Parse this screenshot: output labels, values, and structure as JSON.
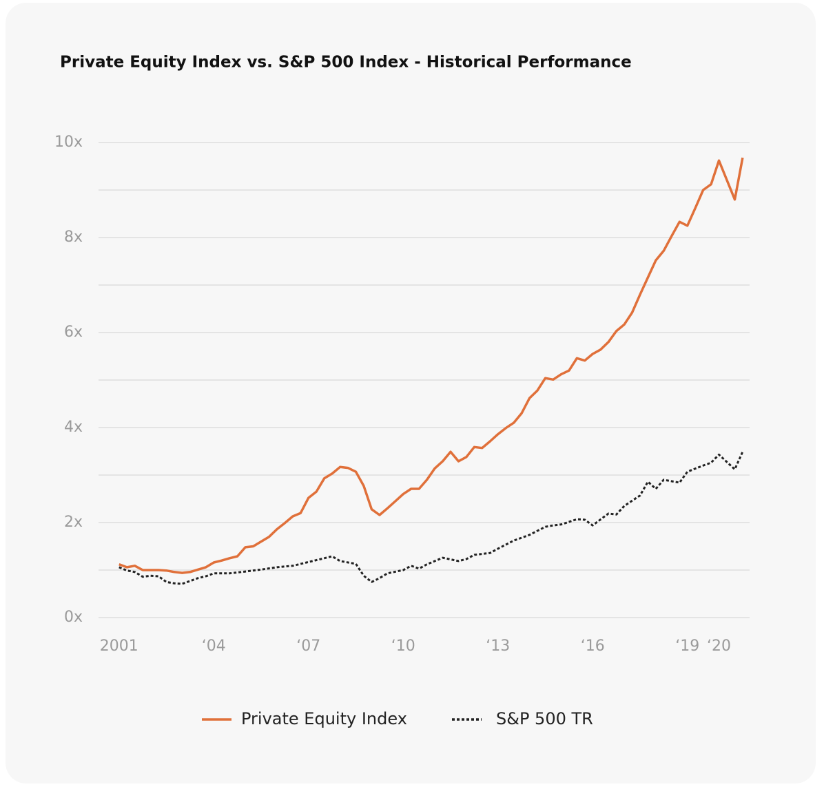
{
  "chart_data": {
    "type": "line",
    "title": "Private Equity Index vs. S&P 500 Index - Historical Performance",
    "xlim": [
      2000.35,
      2020.97
    ],
    "xticks": [
      2001,
      {
        "value": 2004,
        "label": "‘04"
      },
      {
        "value": 2007,
        "label": "‘07"
      },
      {
        "value": 2010,
        "label": "‘10"
      },
      {
        "value": 2013,
        "label": "‘13"
      },
      {
        "value": 2016,
        "label": "‘16"
      },
      {
        "value": 2019,
        "label": "‘19"
      },
      {
        "value": 2020,
        "label": "‘20"
      }
    ],
    "ylim": [
      0,
      10
    ],
    "yticks": [
      {
        "value": 0,
        "label": "0x"
      },
      {
        "value": 2,
        "label": "2x"
      },
      {
        "value": 4,
        "label": "4x"
      },
      {
        "value": 6,
        "label": "6x"
      },
      {
        "value": 8,
        "label": "8x"
      },
      {
        "value": 10,
        "label": "10x"
      }
    ],
    "minor_grid": [
      1,
      3,
      5,
      7,
      9
    ],
    "grid": true,
    "legend": "bottom",
    "series": [
      {
        "name": "Private Equity Index",
        "color": "#e0703a",
        "style": "solid",
        "x": [
          2001,
          2001.25,
          2001.5,
          2001.75,
          2002,
          2002.25,
          2002.5,
          2002.75,
          2003,
          2003.25,
          2003.5,
          2003.75,
          2004,
          2004.25,
          2004.5,
          2004.75,
          2005,
          2005.25,
          2005.5,
          2005.75,
          2006,
          2006.25,
          2006.5,
          2006.75,
          2007,
          2007.25,
          2007.5,
          2007.75,
          2008,
          2008.25,
          2008.5,
          2008.75,
          2009,
          2009.25,
          2009.5,
          2009.75,
          2010,
          2010.25,
          2010.5,
          2010.75,
          2011,
          2011.25,
          2011.5,
          2011.75,
          2012,
          2012.25,
          2012.5,
          2012.75,
          2013,
          2013.25,
          2013.5,
          2013.75,
          2014,
          2014.25,
          2014.5,
          2014.75,
          2015,
          2015.25,
          2015.5,
          2015.75,
          2016,
          2016.25,
          2016.5,
          2016.75,
          2017,
          2017.25,
          2017.5,
          2017.75,
          2018,
          2018.25,
          2018.5,
          2018.75,
          2019,
          2019.25,
          2019.5,
          2019.75,
          2020,
          2020.5,
          2020.75
        ],
        "values": [
          1.12,
          1.06,
          1.09,
          1.0,
          1.0,
          1.0,
          0.99,
          0.96,
          0.94,
          0.96,
          1.01,
          1.06,
          1.16,
          1.2,
          1.25,
          1.29,
          1.48,
          1.5,
          1.6,
          1.7,
          1.86,
          1.99,
          2.13,
          2.2,
          2.52,
          2.65,
          2.93,
          3.03,
          3.17,
          3.15,
          3.07,
          2.77,
          2.28,
          2.16,
          2.3,
          2.45,
          2.6,
          2.71,
          2.71,
          2.9,
          3.14,
          3.29,
          3.49,
          3.29,
          3.38,
          3.59,
          3.57,
          3.71,
          3.86,
          3.99,
          4.1,
          4.3,
          4.62,
          4.78,
          5.04,
          5.01,
          5.12,
          5.2,
          5.46,
          5.41,
          5.55,
          5.64,
          5.8,
          6.03,
          6.17,
          6.42,
          6.8,
          7.16,
          7.52,
          7.72,
          8.03,
          8.33,
          8.25,
          8.62,
          9.0,
          9.12,
          9.62,
          8.8,
          9.68
        ]
      },
      {
        "name": "S&P 500 TR",
        "color": "#222222",
        "style": "dotted",
        "x": [
          2001,
          2001.25,
          2001.5,
          2001.75,
          2002,
          2002.25,
          2002.5,
          2002.75,
          2003,
          2003.25,
          2003.5,
          2003.75,
          2004,
          2004.5,
          2005,
          2005.5,
          2006,
          2006.5,
          2007,
          2007.5,
          2007.75,
          2008,
          2008.5,
          2008.75,
          2009,
          2009.25,
          2009.5,
          2010,
          2010.25,
          2010.5,
          2010.75,
          2011,
          2011.25,
          2011.75,
          2012,
          2012.25,
          2012.75,
          2013,
          2013.5,
          2014,
          2014.5,
          2014.75,
          2015,
          2015.5,
          2015.75,
          2016,
          2016.5,
          2016.75,
          2017,
          2017.5,
          2017.75,
          2018,
          2018.25,
          2018.75,
          2019,
          2019.5,
          2019.75,
          2020,
          2020.5,
          2020.75
        ],
        "values": [
          1.06,
          0.99,
          0.96,
          0.86,
          0.88,
          0.87,
          0.75,
          0.72,
          0.71,
          0.77,
          0.83,
          0.87,
          0.93,
          0.93,
          0.97,
          1.01,
          1.06,
          1.09,
          1.17,
          1.25,
          1.29,
          1.19,
          1.13,
          0.88,
          0.75,
          0.83,
          0.93,
          1.0,
          1.09,
          1.03,
          1.12,
          1.19,
          1.26,
          1.19,
          1.23,
          1.32,
          1.36,
          1.45,
          1.62,
          1.74,
          1.91,
          1.94,
          1.96,
          2.07,
          2.06,
          1.94,
          2.19,
          2.17,
          2.35,
          2.57,
          2.86,
          2.71,
          2.9,
          2.84,
          3.07,
          3.2,
          3.26,
          3.43,
          3.12,
          3.49
        ]
      }
    ]
  }
}
